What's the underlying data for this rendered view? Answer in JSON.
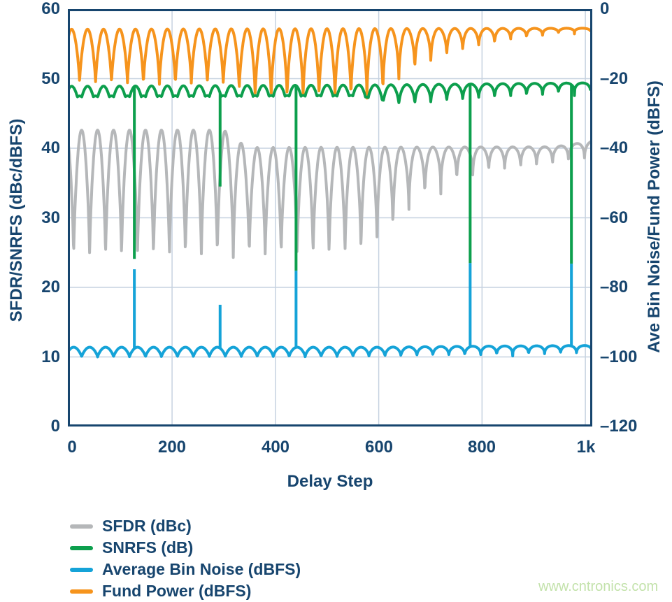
{
  "watermark": "www.cntronics.com",
  "colors": {
    "navy_text": "#17456e",
    "frame": "#17456e",
    "grid": "#c6d2e0",
    "sfdr_gray": "#b5b7b9",
    "snrfs_green": "#0d9f4d",
    "bin_noise_blue": "#15a3d8",
    "fund_power_orange": "#f6941d",
    "watermark_green": "#c3e2ab",
    "background": "#ffffff"
  },
  "chart_data": {
    "type": "line",
    "title": "",
    "xlabel": "Delay Step",
    "ylabel_left": "SFDR/SNRFS (dBc/dBFS)",
    "ylabel_right": "Ave Bin Noise/Fund Power (dBFS)",
    "grid": true,
    "legend_position": "bottom-left",
    "x_max_steps": 1012,
    "oscillation_period_steps": 30.9,
    "left_axis": {
      "range": [
        0,
        60
      ],
      "ticks": [
        "60",
        "50",
        "40",
        "30",
        "20",
        "10",
        "0"
      ]
    },
    "right_axis": {
      "range": [
        -120,
        0
      ],
      "ticks": [
        "0",
        "–20",
        "–40",
        "–60",
        "–80",
        "–100",
        "–120"
      ]
    },
    "x_axis": {
      "tick_values": [
        0,
        200,
        400,
        600,
        800,
        1000
      ],
      "tick_labels": [
        "0",
        "200",
        "400",
        "600",
        "800",
        "1k"
      ]
    },
    "series": [
      {
        "name": "SFDR (dBc)",
        "color": "#b5b7b9",
        "axis": "left",
        "z": 0,
        "phase": 9.5,
        "top_envelope": [
          [
            0,
            42.6
          ],
          [
            300,
            42.6
          ],
          [
            345,
            40.1
          ],
          [
            940,
            40.2
          ],
          [
            1012,
            41.0
          ]
        ],
        "bottom_envelope": [
          [
            0,
            24.3
          ],
          [
            560,
            24.3
          ],
          [
            620,
            27.0
          ],
          [
            680,
            32.0
          ],
          [
            750,
            34.5
          ],
          [
            800,
            35.8
          ],
          [
            900,
            36.5
          ],
          [
            1012,
            37.5
          ]
        ],
        "shape_exponent": [
          [
            0,
            0.72
          ],
          [
            520,
            0.62
          ],
          [
            700,
            0.38
          ],
          [
            950,
            0.24
          ],
          [
            1012,
            0.22
          ]
        ]
      },
      {
        "name": "SNRFS (dB)",
        "color": "#0d9f4d",
        "axis": "left",
        "z": 3,
        "phase": 21,
        "top_envelope": [
          [
            0,
            48.9
          ],
          [
            600,
            49.1
          ],
          [
            1012,
            49.4
          ]
        ],
        "bottom_envelope": [
          [
            0,
            45.8
          ],
          [
            600,
            45.8
          ],
          [
            700,
            46.2
          ],
          [
            800,
            46.8
          ],
          [
            900,
            47.2
          ],
          [
            1012,
            47.7
          ]
        ],
        "shape_exponent": [
          [
            0,
            0.8
          ],
          [
            520,
            0.7
          ],
          [
            700,
            0.4
          ],
          [
            950,
            0.26
          ],
          [
            1012,
            0.24
          ]
        ],
        "secondary_hump": [
          [
            0,
            0.55
          ],
          [
            560,
            0.55
          ],
          [
            680,
            0
          ],
          [
            1012,
            0
          ]
        ]
      },
      {
        "name": "Average Bin Noise (dBFS)",
        "color": "#15a3d8",
        "axis": "right",
        "z": 2,
        "phase": 25,
        "top_envelope": [
          [
            0,
            -97.2
          ],
          [
            600,
            -97.2
          ],
          [
            800,
            -96.9
          ],
          [
            1012,
            -96.7
          ]
        ],
        "bottom_envelope": [
          [
            0,
            -100.0
          ],
          [
            600,
            -99.9
          ],
          [
            1012,
            -99.6
          ]
        ],
        "shape_exponent": [
          [
            0,
            0.78
          ],
          [
            520,
            0.66
          ],
          [
            700,
            0.4
          ],
          [
            950,
            0.28
          ],
          [
            1012,
            0.26
          ]
        ]
      },
      {
        "name": "Fund Power (dBFS)",
        "color": "#f6941d",
        "axis": "right",
        "z": 1,
        "phase": 21,
        "top_envelope": [
          [
            0,
            -5.8
          ],
          [
            1012,
            -5.5
          ]
        ],
        "bottom_envelope": [
          [
            0,
            -21.4
          ],
          [
            300,
            -21.8
          ],
          [
            360,
            -25.4
          ],
          [
            600,
            -25.6
          ],
          [
            660,
            -19.0
          ],
          [
            750,
            -13.4
          ],
          [
            850,
            -9.6
          ],
          [
            950,
            -7.4
          ],
          [
            1012,
            -6.8
          ]
        ],
        "shape_exponent": [
          [
            0,
            0.72
          ],
          [
            520,
            0.62
          ],
          [
            700,
            0.4
          ],
          [
            950,
            0.26
          ],
          [
            1012,
            0.24
          ]
        ]
      }
    ],
    "transient_spikes": [
      {
        "delay_step": 127,
        "snrfs_drop_to_dB": 24.1,
        "bin_noise_rise_to_dBFS": -74.8
      },
      {
        "delay_step": 293,
        "snrfs_drop_to_dB": 34.5,
        "bin_noise_rise_to_dBFS": -85.0
      },
      {
        "delay_step": 440,
        "snrfs_drop_to_dB": 22.4,
        "bin_noise_rise_to_dBFS": -75.2
      },
      {
        "delay_step": 777,
        "snrfs_drop_to_dB": 23.5,
        "bin_noise_rise_to_dBFS": -73.0
      },
      {
        "delay_step": 973,
        "snrfs_drop_to_dB": 23.4,
        "bin_noise_rise_to_dBFS": -73.2
      }
    ]
  }
}
